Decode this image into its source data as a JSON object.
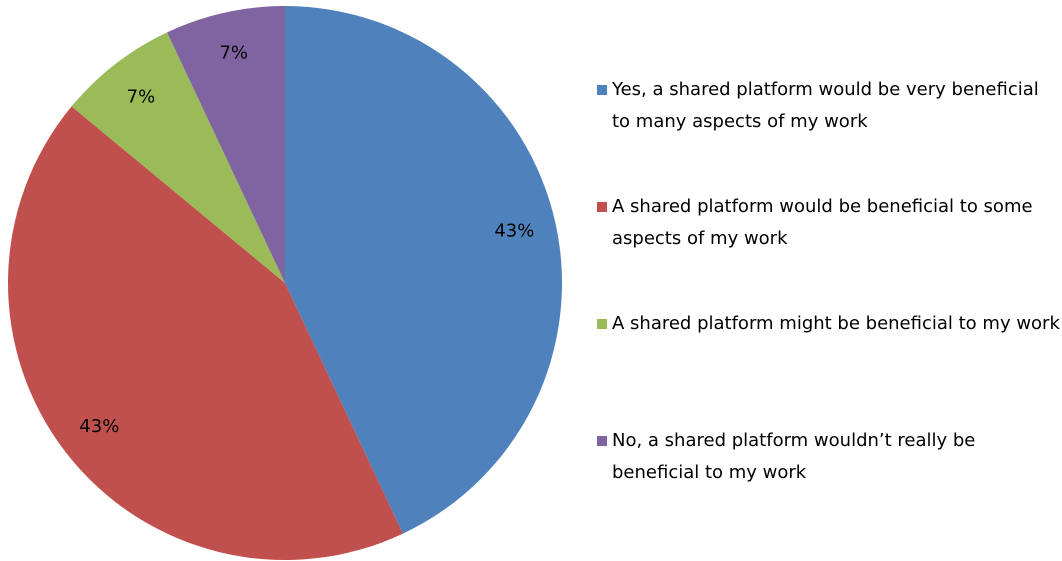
{
  "chart_data": {
    "type": "pie",
    "categories": [
      "Yes, a shared platform would be very beneficial to many aspects of my work",
      "A shared platform would be beneficial to some aspects of my work",
      "A shared platform might be beneficial to my work",
      "No, a shared platform wouldn’t really be beneficial to my work"
    ],
    "values": [
      43,
      43,
      7,
      7
    ],
    "value_labels": [
      "43%",
      "43%",
      "7%",
      "7%"
    ],
    "colors": [
      "#4f81bd",
      "#c0504d",
      "#9bbb59",
      "#8064a2"
    ],
    "legend": "right"
  }
}
